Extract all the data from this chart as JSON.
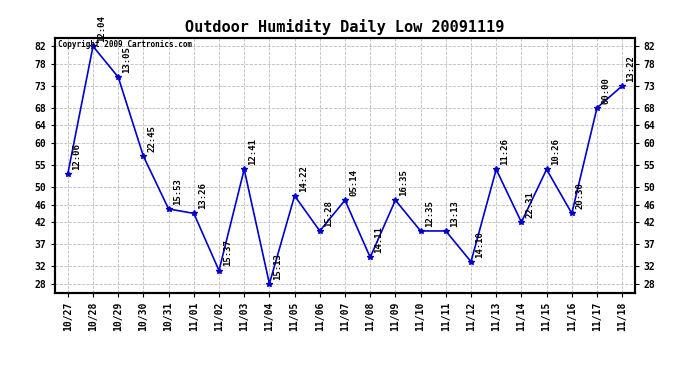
{
  "title": "Outdoor Humidity Daily Low 20091119",
  "copyright_text": "Copyright 2009 Cartronics.com",
  "x_labels": [
    "10/27",
    "10/28",
    "10/29",
    "10/30",
    "10/31",
    "11/01",
    "11/02",
    "11/03",
    "11/04",
    "11/05",
    "11/06",
    "11/07",
    "11/08",
    "11/09",
    "11/10",
    "11/11",
    "11/12",
    "11/13",
    "11/14",
    "11/15",
    "11/16",
    "11/17",
    "11/18"
  ],
  "y_values": [
    53,
    82,
    75,
    57,
    45,
    44,
    31,
    54,
    28,
    48,
    40,
    47,
    34,
    47,
    40,
    40,
    33,
    54,
    42,
    54,
    44,
    68,
    73
  ],
  "point_labels": [
    "12:06",
    "12:04",
    "13:05",
    "22:45",
    "15:53",
    "13:26",
    "15:37",
    "12:41",
    "15:13",
    "14:22",
    "15:28",
    "05:14",
    "14:11",
    "16:35",
    "12:35",
    "13:13",
    "14:10",
    "11:26",
    "22:31",
    "10:26",
    "20:30",
    "00:00",
    "13:22"
  ],
  "ylim": [
    26,
    84
  ],
  "yticks": [
    28,
    32,
    37,
    42,
    46,
    50,
    55,
    60,
    64,
    68,
    73,
    78,
    82
  ],
  "line_color": "#0000cc",
  "marker_color": "#0000cc",
  "bg_color": "#ffffff",
  "grid_color": "#bbbbbb",
  "title_fontsize": 11,
  "tick_fontsize": 7,
  "annotation_fontsize": 6.5
}
